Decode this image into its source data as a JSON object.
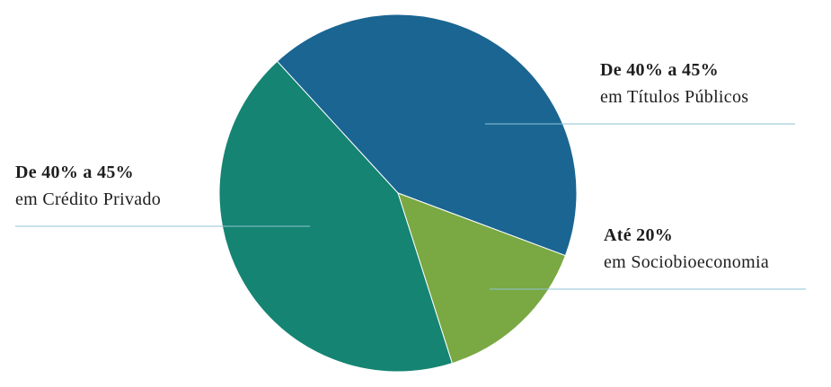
{
  "chart_data": {
    "type": "pie",
    "headings": [
      "De 40% a 45%",
      "Até 20%",
      "De 40% a 45%"
    ],
    "categories": [
      "em Títulos Públicos",
      "em Sociobioeconomia",
      "em Crédito Privado"
    ],
    "values": [
      42.5,
      14.4,
      43.1
    ],
    "colors": [
      "#1a6592",
      "#7aa842",
      "#158472"
    ]
  }
}
